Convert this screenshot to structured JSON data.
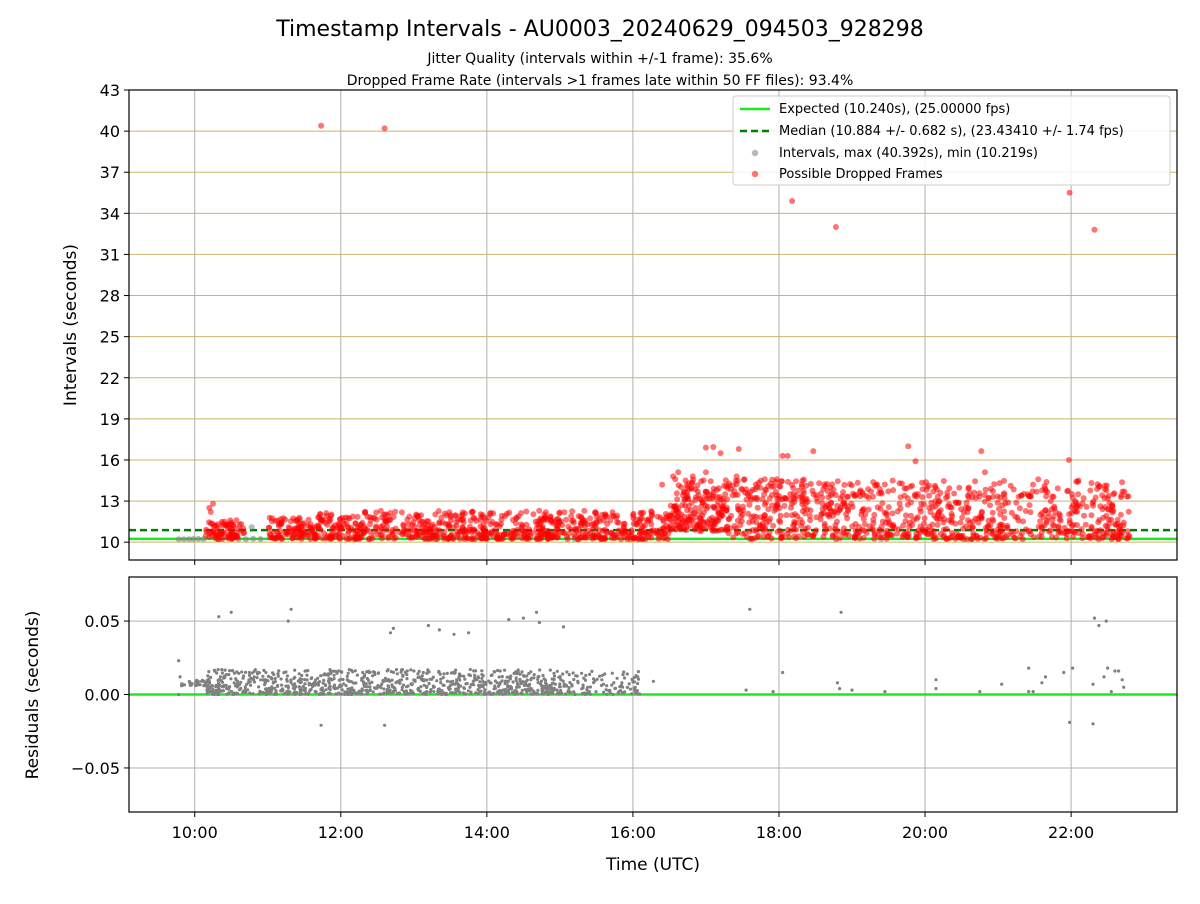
{
  "title": "Timestamp Intervals - AU0003_20240629_094503_928298",
  "subtitle_line1": "Jitter Quality (intervals within +/-1 frame): 35.6%",
  "subtitle_line2": "Dropped Frame Rate (intervals >1 frames late within 50 FF files): 93.4%",
  "colors": {
    "expected": "#1ee81e",
    "median": "#008000",
    "intervals": "#808080",
    "dropped": "#ff0000",
    "hgrid": "#cdb568",
    "grid": "#b0b0b0"
  },
  "chart_data": [
    {
      "type": "scatter",
      "name": "intervals",
      "ylabel": "Intervals (seconds)",
      "xlim": [
        9.1,
        23.45
      ],
      "ylim": [
        8.7,
        43
      ],
      "yticks": [
        10,
        13,
        16,
        19,
        22,
        25,
        28,
        31,
        34,
        37,
        40,
        43
      ],
      "ytick_labels": [
        "10",
        "13",
        "16",
        "19",
        "22",
        "25",
        "28",
        "31",
        "34",
        "37",
        "40",
        "43"
      ],
      "xticks": [
        10,
        12,
        14,
        16,
        18,
        20,
        22
      ],
      "expected": 10.24,
      "median": 10.884,
      "legend": {
        "location": "top-right",
        "expected": "Expected (10.240s), (25.00000 fps)",
        "median": "Median (10.884 +/- 0.682 s), (23.43410 +/- 1.74 fps)",
        "intervals": "Intervals, max (40.392s), min (10.219s)",
        "dropped": "Possible Dropped Frames"
      },
      "series": [
        {
          "name": "Intervals",
          "points": [
            [
              9.78,
              10.22
            ],
            [
              9.85,
              10.22
            ],
            [
              9.92,
              10.22
            ],
            [
              9.98,
              10.23
            ],
            [
              10.05,
              10.24
            ],
            [
              10.12,
              10.23
            ],
            [
              10.6,
              10.23
            ],
            [
              10.7,
              10.22
            ],
            [
              10.8,
              10.25
            ],
            [
              10.9,
              10.23
            ],
            [
              10.78,
              11.1
            ],
            [
              13.2,
              10.23
            ],
            [
              15.2,
              10.24
            ],
            [
              17.6,
              10.24
            ],
            [
              19.4,
              10.23
            ],
            [
              21.0,
              10.24
            ]
          ]
        },
        {
          "name": "Possible Dropped Frames",
          "outliers": [
            [
              11.73,
              40.39
            ],
            [
              12.6,
              40.2
            ],
            [
              18.18,
              34.9
            ],
            [
              18.78,
              33.0
            ],
            [
              21.98,
              35.5
            ],
            [
              22.32,
              32.8
            ],
            [
              17.0,
              16.9
            ],
            [
              17.1,
              16.95
            ],
            [
              17.2,
              16.5
            ],
            [
              17.45,
              16.8
            ],
            [
              18.05,
              16.3
            ],
            [
              18.12,
              16.3
            ],
            [
              18.47,
              16.65
            ],
            [
              19.77,
              17.0
            ],
            [
              19.87,
              15.9
            ],
            [
              20.77,
              16.65
            ],
            [
              21.97,
              16.0
            ],
            [
              16.58,
              14.6
            ],
            [
              16.4,
              14.2
            ],
            [
              16.55,
              14.8
            ],
            [
              16.62,
              15.1
            ],
            [
              16.82,
              14.8
            ],
            [
              17.0,
              15.1
            ],
            [
              17.42,
              14.8
            ],
            [
              18.55,
              14.3
            ],
            [
              19.65,
              14.3
            ],
            [
              20.82,
              15.1
            ],
            [
              21.55,
              14.6
            ],
            [
              22.1,
              14.5
            ],
            [
              10.25,
              12.8
            ],
            [
              10.2,
              12.5
            ],
            [
              10.22,
              12.2
            ]
          ],
          "bands": [
            {
              "x": [
                10.15,
                10.68
              ],
              "y": [
                10.22,
                11.6
              ],
              "n": 80
            },
            {
              "x": [
                11.0,
                11.6
              ],
              "y": [
                10.22,
                11.8
              ],
              "n": 90
            },
            {
              "x": [
                11.6,
                15.1
              ],
              "y": [
                10.22,
                12.3
              ],
              "n": 520
            },
            {
              "x": [
                15.1,
                16.5
              ],
              "y": [
                10.22,
                12.3
              ],
              "n": 200
            },
            {
              "x": [
                16.5,
                17.3
              ],
              "y": [
                10.8,
                13.1
              ],
              "n": 140
            },
            {
              "x": [
                16.6,
                18.4
              ],
              "y": [
                13.1,
                14.6
              ],
              "n": 140
            },
            {
              "x": [
                17.3,
                22.8
              ],
              "y": [
                10.22,
                13.0
              ],
              "n": 620
            },
            {
              "x": [
                18.4,
                22.8
              ],
              "y": [
                13.2,
                14.5
              ],
              "n": 170
            }
          ]
        }
      ]
    },
    {
      "type": "scatter",
      "name": "residuals",
      "xlabel": "Time (UTC)",
      "ylabel": "Residuals (seconds)",
      "xlim": [
        9.1,
        23.45
      ],
      "ylim": [
        -0.08,
        0.08
      ],
      "yticks": [
        -0.05,
        0.0,
        0.05
      ],
      "ytick_labels": [
        "−0.05",
        "0.00",
        "0.05"
      ],
      "xticks": [
        10,
        12,
        14,
        16,
        18,
        20,
        22
      ],
      "xtick_labels": [
        "10:00",
        "12:00",
        "14:00",
        "16:00",
        "18:00",
        "20:00",
        "22:00"
      ],
      "zero_line": 0.0,
      "series": [
        {
          "name": "Residuals",
          "points": [
            [
              9.78,
              0.023
            ],
            [
              9.8,
              0.012
            ],
            [
              9.82,
              0.006
            ],
            [
              9.78,
              0.0
            ],
            [
              10.33,
              0.053
            ],
            [
              10.5,
              0.056
            ],
            [
              11.28,
              0.05
            ],
            [
              11.32,
              0.058
            ],
            [
              11.73,
              -0.021
            ],
            [
              12.6,
              -0.021
            ],
            [
              12.68,
              0.042
            ],
            [
              12.72,
              0.045
            ],
            [
              13.2,
              0.047
            ],
            [
              13.35,
              0.044
            ],
            [
              13.55,
              0.041
            ],
            [
              13.75,
              0.042
            ],
            [
              14.3,
              0.051
            ],
            [
              14.5,
              0.052
            ],
            [
              14.68,
              0.056
            ],
            [
              14.72,
              0.049
            ],
            [
              15.05,
              0.046
            ],
            [
              16.28,
              0.009
            ],
            [
              17.55,
              0.003
            ],
            [
              17.6,
              0.058
            ],
            [
              17.92,
              0.002
            ],
            [
              18.05,
              0.015
            ],
            [
              18.8,
              0.008
            ],
            [
              18.83,
              0.004
            ],
            [
              18.85,
              0.056
            ],
            [
              19.0,
              0.003
            ],
            [
              19.45,
              0.002
            ],
            [
              20.15,
              0.01
            ],
            [
              20.15,
              0.004
            ],
            [
              20.75,
              0.002
            ],
            [
              21.05,
              0.007
            ],
            [
              21.42,
              0.018
            ],
            [
              21.42,
              0.002
            ],
            [
              21.48,
              0.002
            ],
            [
              21.6,
              0.008
            ],
            [
              21.65,
              0.012
            ],
            [
              21.9,
              0.015
            ],
            [
              21.98,
              -0.019
            ],
            [
              22.02,
              0.018
            ],
            [
              22.3,
              -0.02
            ],
            [
              22.32,
              0.052
            ],
            [
              22.38,
              0.047
            ],
            [
              22.48,
              0.05
            ],
            [
              22.3,
              0.007
            ],
            [
              22.45,
              0.012
            ],
            [
              22.5,
              0.018
            ],
            [
              22.55,
              0.002
            ],
            [
              22.6,
              0.016
            ],
            [
              22.65,
              0.016
            ],
            [
              22.7,
              0.01
            ],
            [
              22.72,
              0.005
            ]
          ],
          "bands": [
            {
              "x": [
                9.82,
                10.15
              ],
              "y": [
                0.006,
                0.01
              ],
              "n": 30
            },
            {
              "x": [
                10.15,
                15.1
              ],
              "y": [
                0.0,
                0.017
              ],
              "n": 900
            },
            {
              "x": [
                15.1,
                16.1
              ],
              "y": [
                0.0,
                0.016
              ],
              "n": 100
            }
          ]
        }
      ]
    }
  ]
}
